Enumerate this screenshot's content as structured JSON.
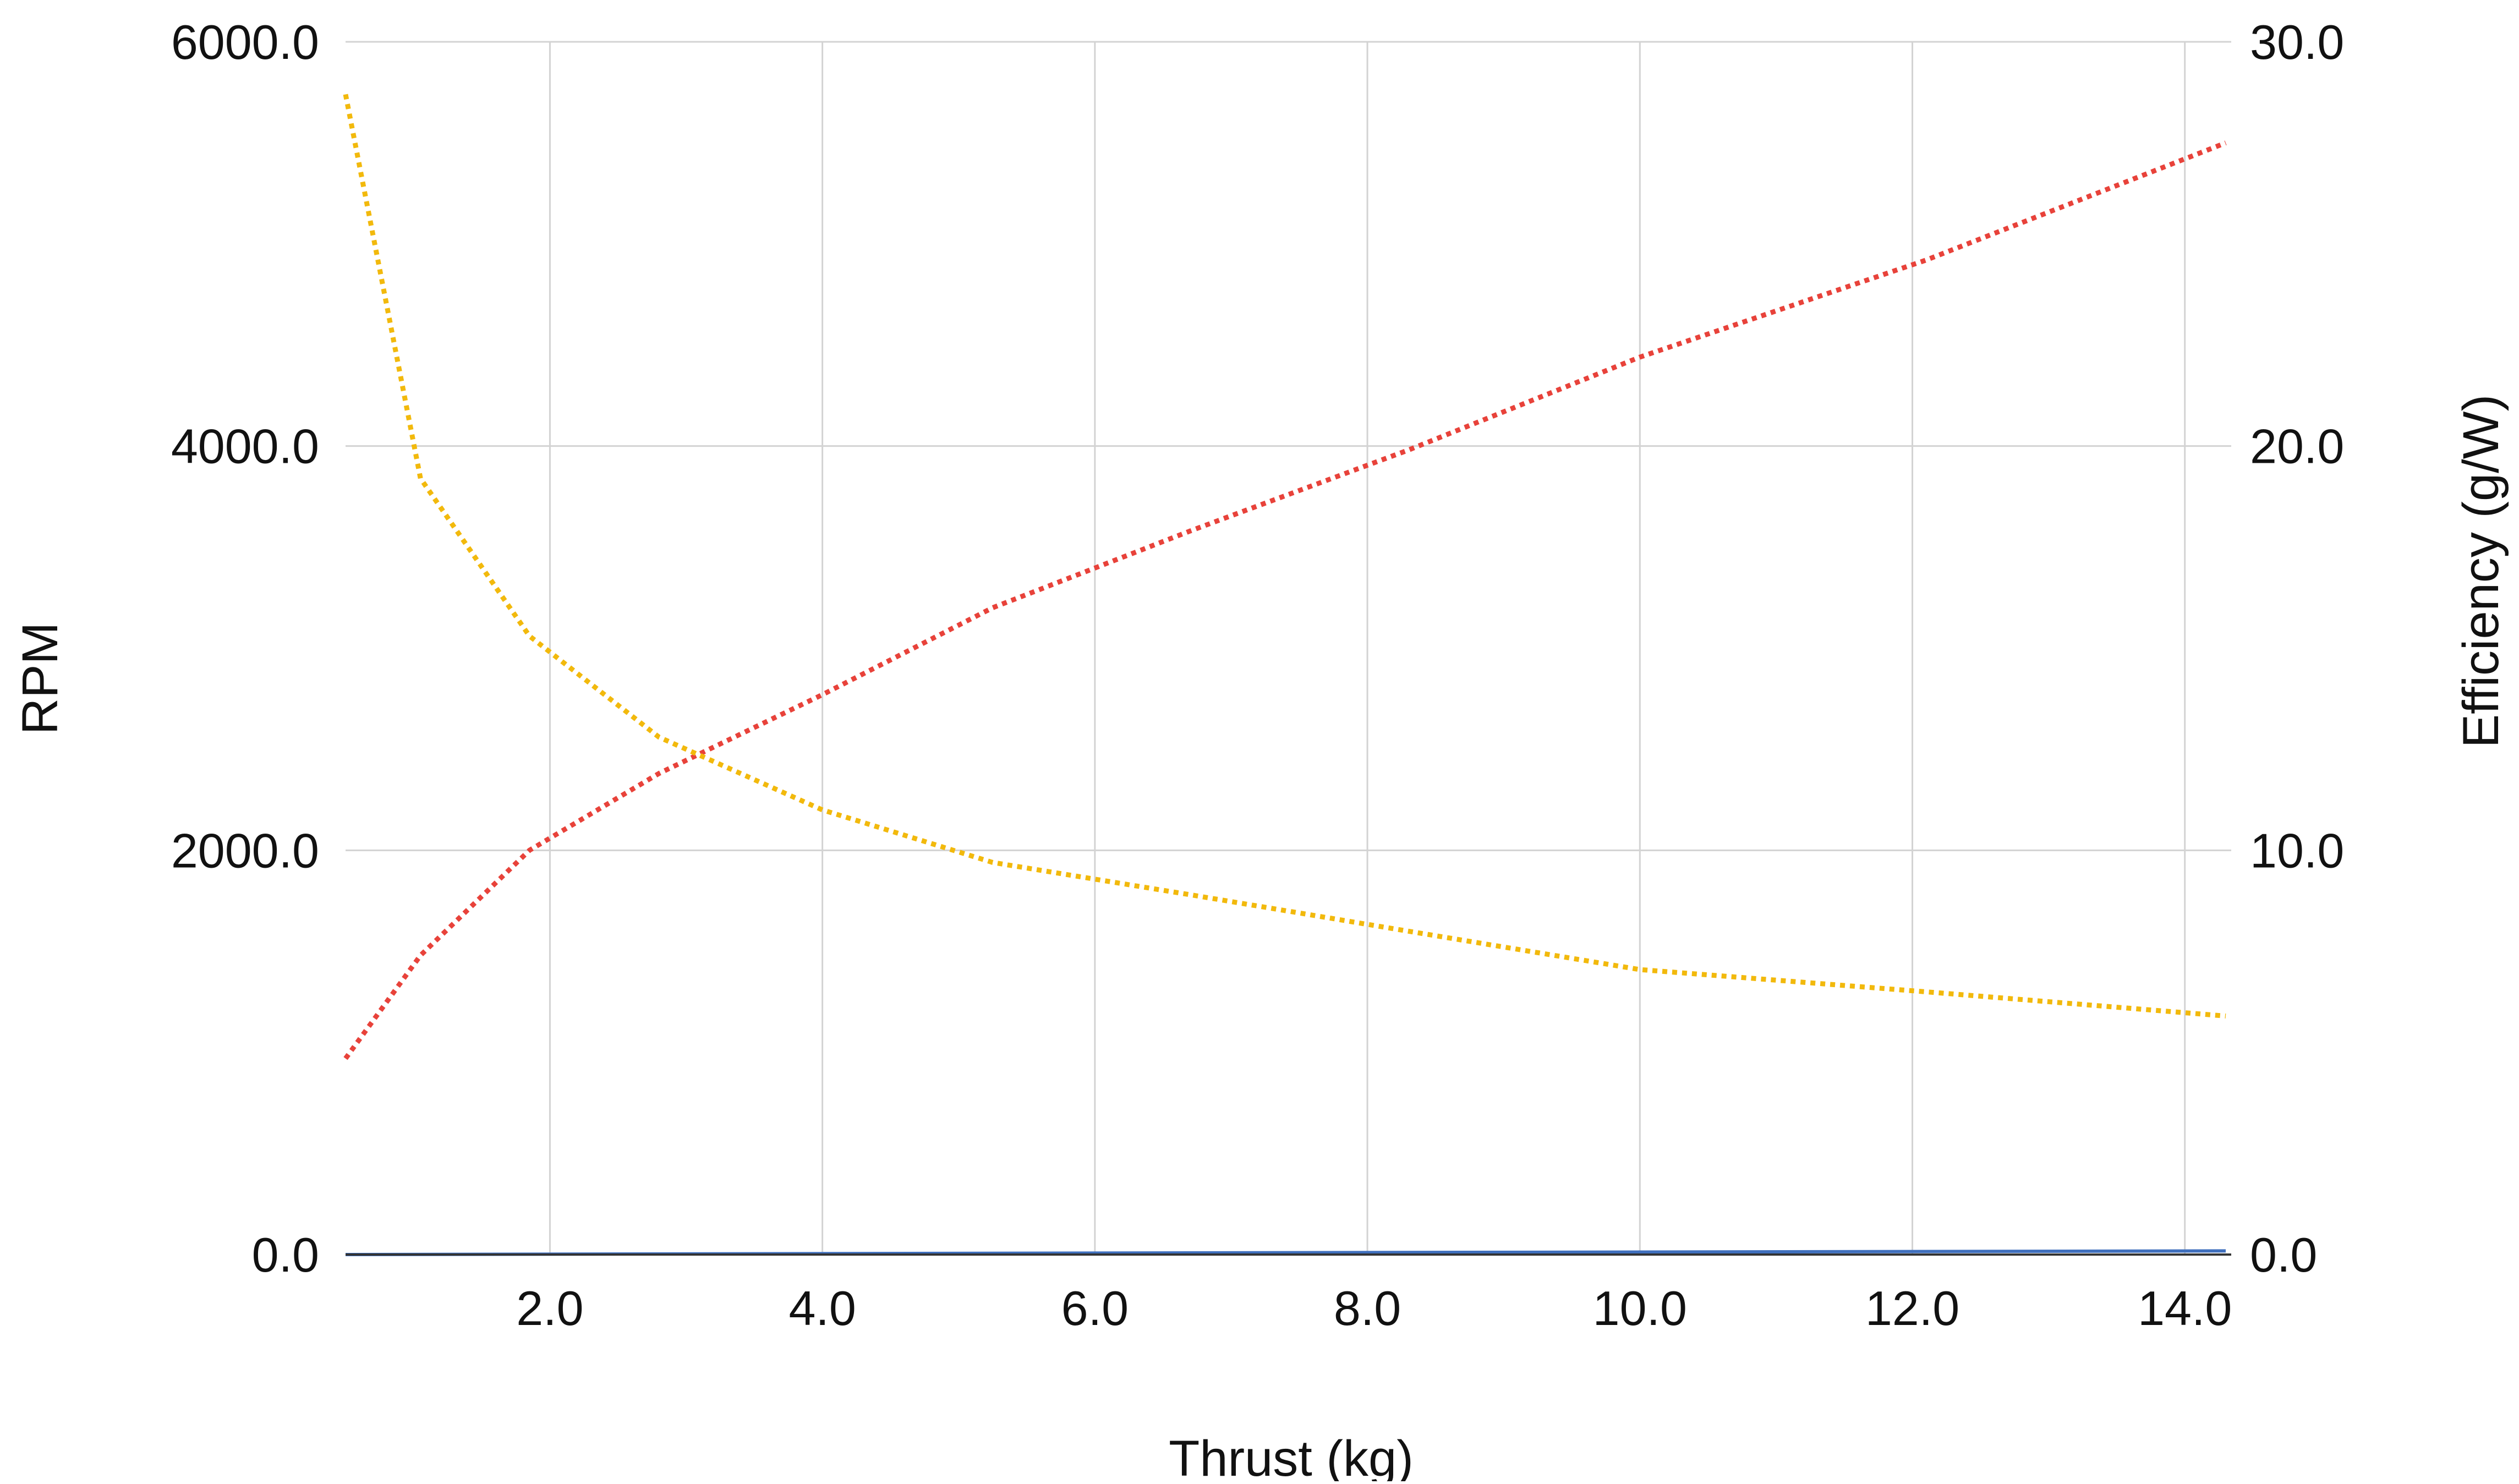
{
  "chart_data": {
    "type": "line",
    "title": "",
    "xlabel": "Thrust (kg)",
    "ylabel_left": "RPM",
    "ylabel_right": "Efficiency (g/W)",
    "xlim": [
      0.5,
      14.3
    ],
    "ylim_left": [
      0,
      6000
    ],
    "ylim_right": [
      0,
      30
    ],
    "x_ticks": [
      "2.0",
      "4.0",
      "6.0",
      "8.0",
      "10.0",
      "12.0",
      "14.0"
    ],
    "x_tick_values": [
      2,
      4,
      6,
      8,
      10,
      12,
      14
    ],
    "y_left_ticks": [
      "0.0",
      "2000.0",
      "4000.0",
      "6000.0"
    ],
    "y_left_tick_values": [
      0,
      2000,
      4000,
      6000
    ],
    "y_right_ticks": [
      "0.0",
      "10.0",
      "20.0",
      "30.0"
    ],
    "y_right_tick_values": [
      0,
      10,
      20,
      30
    ],
    "grid": true,
    "legend": "none",
    "series": [
      {
        "axis": "left",
        "style": "dotted",
        "color": "#e8423a",
        "points": [
          [
            0.5,
            970
          ],
          [
            1.05,
            1480
          ],
          [
            1.85,
            2000
          ],
          [
            2.8,
            2380
          ],
          [
            4.0,
            2770
          ],
          [
            5.25,
            3200
          ],
          [
            6.7,
            3580
          ],
          [
            8.3,
            3980
          ],
          [
            10.0,
            4440
          ],
          [
            12.1,
            4920
          ],
          [
            14.3,
            5500
          ]
        ]
      },
      {
        "axis": "right",
        "style": "dotted",
        "color": "#f2b90c",
        "points": [
          [
            0.5,
            28.7
          ],
          [
            1.05,
            19.2
          ],
          [
            1.85,
            15.3
          ],
          [
            2.8,
            12.8
          ],
          [
            4.0,
            11.0
          ],
          [
            5.25,
            9.7
          ],
          [
            6.7,
            8.9
          ],
          [
            8.3,
            8.0
          ],
          [
            10.0,
            7.05
          ],
          [
            12.1,
            6.5
          ],
          [
            14.3,
            5.9
          ]
        ]
      },
      {
        "axis": "left",
        "style": "solid",
        "color": "#3f6fbd",
        "points": [
          [
            0.5,
            0
          ],
          [
            14.3,
            18
          ]
        ]
      }
    ]
  }
}
